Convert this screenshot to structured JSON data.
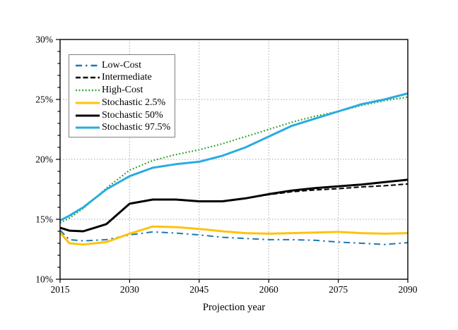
{
  "chart_data": {
    "type": "line",
    "title": "",
    "xlabel": "Projection year",
    "ylabel": "",
    "xlim": [
      2015,
      2090
    ],
    "ylim": [
      10,
      30
    ],
    "xticks": {
      "values": [
        2015,
        2030,
        2045,
        2060,
        2075,
        2090
      ],
      "labels": [
        "2015",
        "2030",
        "2045",
        "2060",
        "2075",
        "2090"
      ]
    },
    "yticks": {
      "values": [
        10,
        15,
        20,
        25,
        30
      ],
      "labels": [
        "10%",
        "15%",
        "20%",
        "25%",
        "30%"
      ]
    },
    "y_minor_tick_step": 1,
    "grid": {
      "horizontal": [
        15,
        20,
        25
      ],
      "vertical": [
        2030,
        2045,
        2060,
        2075
      ],
      "style": "dotted",
      "color": "#a6a6a6"
    },
    "legend_position": "upper-left",
    "x": [
      2015,
      2017,
      2020,
      2025,
      2030,
      2035,
      2040,
      2045,
      2050,
      2055,
      2060,
      2065,
      2070,
      2075,
      2080,
      2085,
      2090
    ],
    "series": [
      {
        "name": "Low-Cost",
        "color": "#1f77b4",
        "style": "dash-dot",
        "width": 2,
        "values": [
          14.1,
          13.3,
          13.2,
          13.3,
          13.7,
          13.95,
          13.85,
          13.7,
          13.5,
          13.4,
          13.3,
          13.3,
          13.25,
          13.1,
          13.0,
          12.9,
          13.05
        ]
      },
      {
        "name": "Intermediate",
        "color": "#000000",
        "style": "dashed",
        "width": 2,
        "values": [
          14.3,
          14.05,
          14.0,
          14.6,
          16.3,
          16.65,
          16.65,
          16.5,
          16.5,
          16.75,
          17.05,
          17.3,
          17.45,
          17.55,
          17.7,
          17.8,
          17.95
        ]
      },
      {
        "name": "High-Cost",
        "color": "#2ca02c",
        "style": "dotted",
        "width": 2.2,
        "values": [
          14.7,
          15.1,
          15.9,
          17.6,
          19.1,
          19.9,
          20.4,
          20.8,
          21.3,
          21.9,
          22.5,
          23.1,
          23.6,
          24.0,
          24.5,
          24.9,
          25.2
        ]
      },
      {
        "name": "Stochastic 2.5%",
        "color": "#ffc20e",
        "style": "solid",
        "width": 3,
        "values": [
          13.9,
          13.0,
          12.9,
          13.1,
          13.8,
          14.4,
          14.35,
          14.2,
          14.0,
          13.85,
          13.8,
          13.85,
          13.9,
          13.95,
          13.85,
          13.8,
          13.85
        ]
      },
      {
        "name": "Stochastic 50%",
        "color": "#000000",
        "style": "solid",
        "width": 3,
        "values": [
          14.3,
          14.05,
          14.0,
          14.6,
          16.3,
          16.65,
          16.65,
          16.5,
          16.5,
          16.75,
          17.1,
          17.4,
          17.6,
          17.75,
          17.9,
          18.1,
          18.3
        ]
      },
      {
        "name": "Stochastic 97.5%",
        "color": "#29abe2",
        "style": "solid",
        "width": 3,
        "values": [
          14.9,
          15.3,
          16.0,
          17.5,
          18.6,
          19.3,
          19.6,
          19.8,
          20.3,
          21.0,
          21.9,
          22.8,
          23.4,
          24.0,
          24.6,
          25.0,
          25.5
        ]
      }
    ]
  }
}
